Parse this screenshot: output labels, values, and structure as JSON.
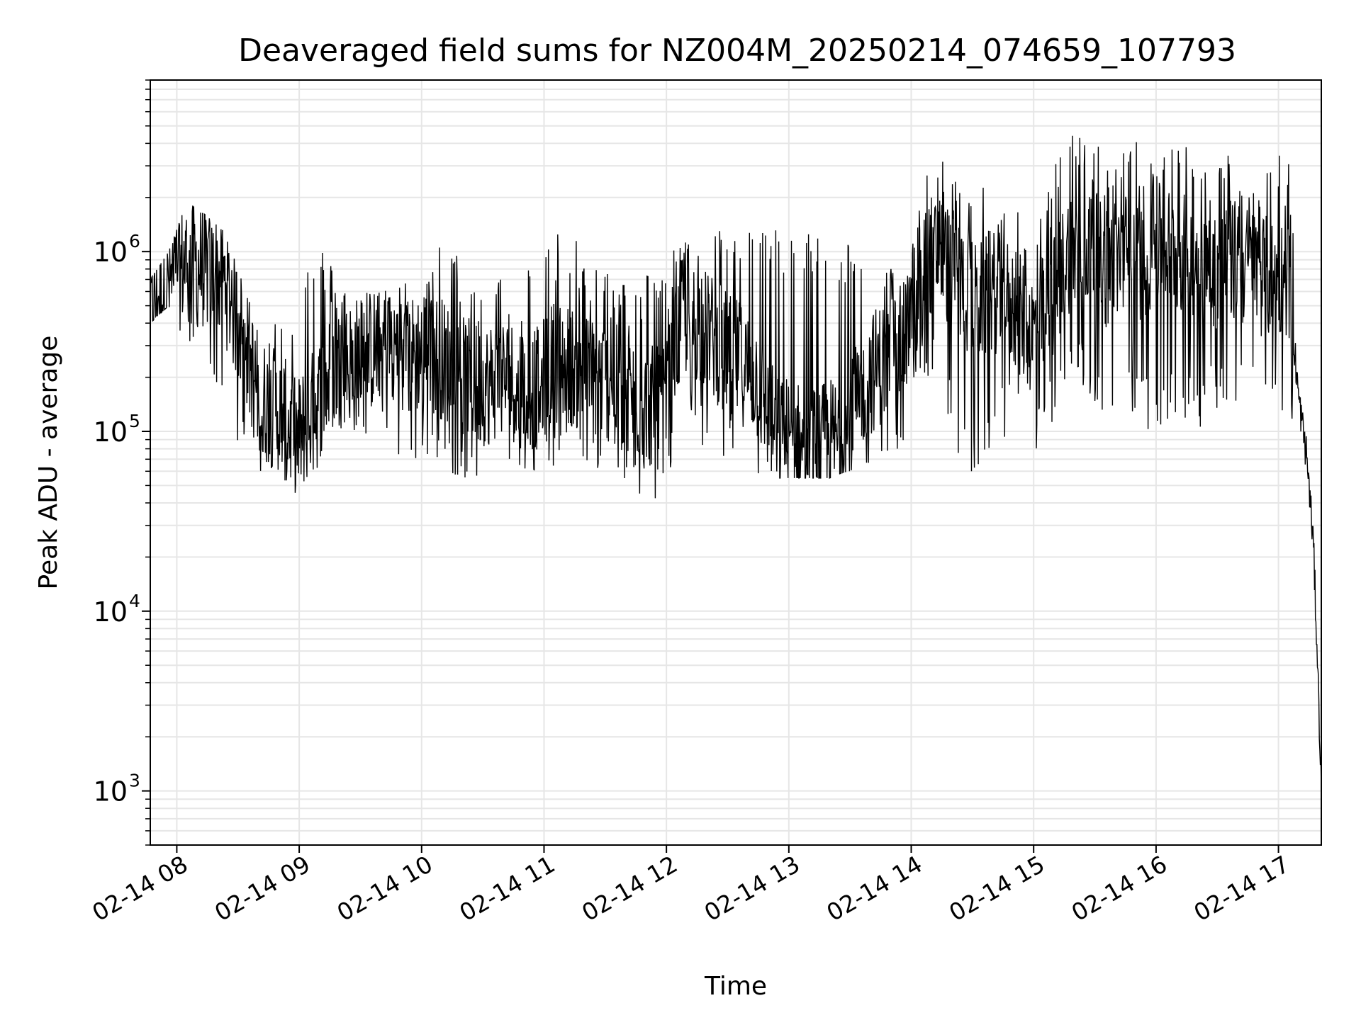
{
  "chart_data": {
    "type": "line",
    "title": "Deaveraged field sums for NZ004M_20250214_074659_107793",
    "xlabel": "Time",
    "ylabel": "Peak ADU - average",
    "yscale": "log",
    "ylim": [
      500,
      9000000
    ],
    "xlim": [
      "02-14 07:47",
      "02-14 17:21"
    ],
    "grid": true,
    "legend": "none",
    "line_color": "#000000",
    "grid_color": "#e6e6e6",
    "x_ticks": [
      "02-14 08",
      "02-14 09",
      "02-14 10",
      "02-14 11",
      "02-14 12",
      "02-14 13",
      "02-14 14",
      "02-14 15",
      "02-14 16",
      "02-14 17"
    ],
    "y_ticks": [
      {
        "base": "10",
        "exp": "3",
        "value": 1000
      },
      {
        "base": "10",
        "exp": "4",
        "value": 10000
      },
      {
        "base": "10",
        "exp": "5",
        "value": 100000
      },
      {
        "base": "10",
        "exp": "6",
        "value": 1000000
      }
    ],
    "series": [
      {
        "x": [
          "07:47",
          "07:56",
          "08:05",
          "08:14",
          "08:23",
          "08:32",
          "08:41",
          "08:50",
          "08:59",
          "09:08",
          "09:17",
          "09:26",
          "09:35",
          "09:44",
          "09:53",
          "10:02",
          "10:11",
          "10:20",
          "10:29",
          "10:38",
          "10:47",
          "10:56",
          "11:05",
          "11:14",
          "11:23",
          "11:32",
          "11:41",
          "11:50",
          "11:59",
          "12:08",
          "12:17",
          "12:26",
          "12:35",
          "12:44",
          "12:53",
          "13:02",
          "13:11",
          "13:20",
          "13:29",
          "13:38",
          "13:47",
          "13:56",
          "14:05",
          "14:14",
          "14:23",
          "14:32",
          "14:41",
          "14:50",
          "14:59",
          "15:08",
          "15:17",
          "15:26",
          "15:35",
          "15:44",
          "15:53",
          "16:02",
          "16:11",
          "16:20",
          "16:29",
          "16:38",
          "16:47",
          "16:56",
          "17:05",
          "17:10",
          "17:14",
          "17:17",
          "17:19",
          "17:21"
        ],
        "y": [
          500000,
          650000,
          900000,
          800000,
          700000,
          350000,
          150000,
          130000,
          90000,
          140000,
          220000,
          250000,
          280000,
          320000,
          250000,
          300000,
          250000,
          200000,
          180000,
          200000,
          190000,
          170000,
          250000,
          230000,
          200000,
          190000,
          160000,
          140000,
          130000,
          450000,
          400000,
          300000,
          250000,
          200000,
          100000,
          90000,
          80000,
          90000,
          100000,
          200000,
          250000,
          300000,
          900000,
          1000000,
          700000,
          500000,
          600000,
          500000,
          350000,
          500000,
          1000000,
          1100000,
          800000,
          1000000,
          900000,
          1100000,
          1000000,
          900000,
          800000,
          900000,
          800000,
          700000,
          700000,
          150000,
          70000,
          25000,
          6000,
          1000
        ],
        "min": [
          400000,
          500000,
          300000,
          250000,
          150000,
          70000,
          60000,
          50000,
          45000,
          60000,
          80000,
          100000,
          90000,
          80000,
          70000,
          60000,
          60000,
          55000,
          50000,
          55000,
          60000,
          55000,
          60000,
          60000,
          55000,
          50000,
          45000,
          40000,
          40000,
          100000,
          80000,
          70000,
          60000,
          55000,
          55000,
          55000,
          55000,
          55000,
          60000,
          60000,
          70000,
          80000,
          200000,
          150000,
          70000,
          50000,
          80000,
          100000,
          60000,
          100000,
          200000,
          150000,
          100000,
          150000,
          100000,
          100000,
          120000,
          100000,
          130000,
          120000,
          150000,
          100000,
          150000,
          60000,
          40000,
          15000,
          4000,
          1000
        ],
        "max": [
          700000,
          1000000,
          1900000,
          1600000,
          1300000,
          700000,
          500000,
          450000,
          600000,
          1400000,
          800000,
          600000,
          650000,
          700000,
          700000,
          900000,
          1200000,
          900000,
          700000,
          1000000,
          800000,
          900000,
          1400000,
          1200000,
          1000000,
          800000,
          700000,
          800000,
          900000,
          1200000,
          1400000,
          1400000,
          1400000,
          1400000,
          1400000,
          1400000,
          1300000,
          1300000,
          1300000,
          900000,
          800000,
          900000,
          2500000,
          3500000,
          3000000,
          2500000,
          2000000,
          2000000,
          1500000,
          2500000,
          5000000,
          4500000,
          4000000,
          4500000,
          4000000,
          5000000,
          4500000,
          3500000,
          4000000,
          3500000,
          3000000,
          4000000,
          3500000,
          400000,
          120000,
          40000,
          10000,
          1500
        ]
      }
    ]
  }
}
